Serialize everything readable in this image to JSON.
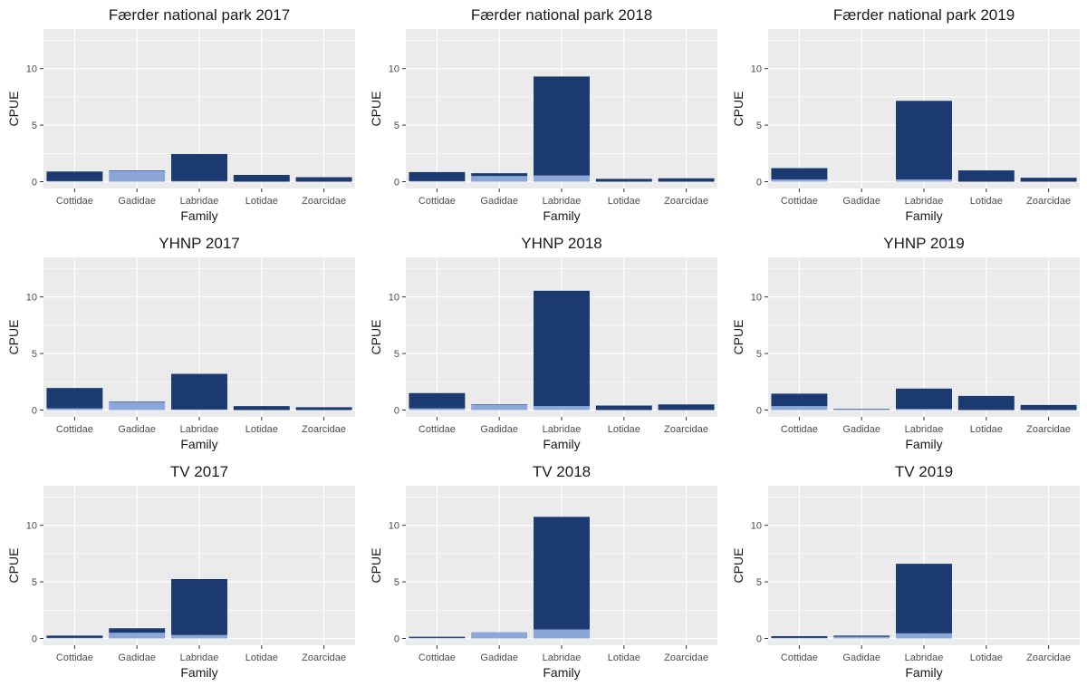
{
  "colors": {
    "panel_bg": "#ebebeb",
    "grid": "#ffffff",
    "dark": "#1b3a70",
    "light": "#8ba6d9"
  },
  "chart_data": [
    {
      "type": "bar",
      "title": "Færder national park 2017",
      "xlabel": "Family",
      "ylabel": "CPUE",
      "ylim": [
        -0.6,
        13.5
      ],
      "yticks": [
        "0",
        "5",
        "10"
      ],
      "categories": [
        "Cottidae",
        "Gadidae",
        "Labridae",
        "Lotidae",
        "Zoarcidae"
      ],
      "series": [
        {
          "color": "#8ba6d9",
          "values": [
            0.05,
            0.95,
            0.05,
            0.0,
            0.0
          ]
        },
        {
          "color": "#1b3a70",
          "values": [
            0.85,
            0.05,
            2.4,
            0.6,
            0.4
          ]
        }
      ]
    },
    {
      "type": "bar",
      "title": "Færder national park 2018",
      "xlabel": "Family",
      "ylabel": "CPUE",
      "ylim": [
        -0.6,
        13.5
      ],
      "yticks": [
        "0",
        "5",
        "10"
      ],
      "categories": [
        "Cottidae",
        "Gadidae",
        "Labridae",
        "Lotidae",
        "Zoarcidae"
      ],
      "series": [
        {
          "color": "#8ba6d9",
          "values": [
            0.05,
            0.5,
            0.55,
            0.0,
            0.0
          ]
        },
        {
          "color": "#1b3a70",
          "values": [
            0.8,
            0.25,
            8.75,
            0.25,
            0.3
          ]
        }
      ]
    },
    {
      "type": "bar",
      "title": "Færder national park 2019",
      "xlabel": "Family",
      "ylabel": "CPUE",
      "ylim": [
        -0.6,
        13.5
      ],
      "yticks": [
        "0",
        "5",
        "10"
      ],
      "categories": [
        "Cottidae",
        "Gadidae",
        "Labridae",
        "Lotidae",
        "Zoarcidae"
      ],
      "series": [
        {
          "color": "#8ba6d9",
          "values": [
            0.2,
            0.0,
            0.2,
            0.0,
            0.0
          ]
        },
        {
          "color": "#1b3a70",
          "values": [
            1.0,
            0.0,
            6.95,
            1.0,
            0.35
          ]
        }
      ]
    },
    {
      "type": "bar",
      "title": "YHNP 2017",
      "xlabel": "Family",
      "ylabel": "CPUE",
      "ylim": [
        -0.6,
        13.5
      ],
      "yticks": [
        "0",
        "5",
        "10"
      ],
      "categories": [
        "Cottidae",
        "Gadidae",
        "Labridae",
        "Lotidae",
        "Zoarcidae"
      ],
      "series": [
        {
          "color": "#8ba6d9",
          "values": [
            0.15,
            0.7,
            0.05,
            0.0,
            0.0
          ]
        },
        {
          "color": "#1b3a70",
          "values": [
            1.8,
            0.05,
            3.15,
            0.35,
            0.25
          ]
        }
      ]
    },
    {
      "type": "bar",
      "title": "YHNP 2018",
      "xlabel": "Family",
      "ylabel": "CPUE",
      "ylim": [
        -0.6,
        13.5
      ],
      "yticks": [
        "0",
        "5",
        "10"
      ],
      "categories": [
        "Cottidae",
        "Gadidae",
        "Labridae",
        "Lotidae",
        "Zoarcidae"
      ],
      "series": [
        {
          "color": "#8ba6d9",
          "values": [
            0.15,
            0.45,
            0.35,
            0.0,
            0.0
          ]
        },
        {
          "color": "#1b3a70",
          "values": [
            1.35,
            0.05,
            10.2,
            0.4,
            0.5
          ]
        }
      ]
    },
    {
      "type": "bar",
      "title": "YHNP 2019",
      "xlabel": "Family",
      "ylabel": "CPUE",
      "ylim": [
        -0.6,
        13.5
      ],
      "yticks": [
        "0",
        "5",
        "10"
      ],
      "categories": [
        "Cottidae",
        "Gadidae",
        "Labridae",
        "Lotidae",
        "Zoarcidae"
      ],
      "series": [
        {
          "color": "#8ba6d9",
          "values": [
            0.35,
            0.05,
            0.1,
            0.0,
            0.0
          ]
        },
        {
          "color": "#1b3a70",
          "values": [
            1.1,
            0.05,
            1.8,
            1.25,
            0.45
          ]
        }
      ]
    },
    {
      "type": "bar",
      "title": "TV 2017",
      "xlabel": "Family",
      "ylabel": "CPUE",
      "ylim": [
        -0.6,
        13.5
      ],
      "yticks": [
        "0",
        "5",
        "10"
      ],
      "categories": [
        "Cottidae",
        "Gadidae",
        "Labridae",
        "Lotidae",
        "Zoarcidae"
      ],
      "series": [
        {
          "color": "#8ba6d9",
          "values": [
            0.05,
            0.5,
            0.3,
            0.0,
            0.0
          ]
        },
        {
          "color": "#1b3a70",
          "values": [
            0.2,
            0.4,
            4.95,
            0.0,
            0.0
          ]
        }
      ]
    },
    {
      "type": "bar",
      "title": "TV 2018",
      "xlabel": "Family",
      "ylabel": "CPUE",
      "ylim": [
        -0.6,
        13.5
      ],
      "yticks": [
        "0",
        "5",
        "10"
      ],
      "categories": [
        "Cottidae",
        "Gadidae",
        "Labridae",
        "Lotidae",
        "Zoarcidae"
      ],
      "series": [
        {
          "color": "#8ba6d9",
          "values": [
            0.05,
            0.55,
            0.8,
            0.0,
            0.0
          ]
        },
        {
          "color": "#1b3a70",
          "values": [
            0.1,
            0.0,
            9.95,
            0.0,
            0.0
          ]
        }
      ]
    },
    {
      "type": "bar",
      "title": "TV 2019",
      "xlabel": "Family",
      "ylabel": "CPUE",
      "ylim": [
        -0.6,
        13.5
      ],
      "yticks": [
        "0",
        "5",
        "10"
      ],
      "categories": [
        "Cottidae",
        "Gadidae",
        "Labridae",
        "Lotidae",
        "Zoarcidae"
      ],
      "series": [
        {
          "color": "#8ba6d9",
          "values": [
            0.05,
            0.15,
            0.45,
            0.0,
            0.0
          ]
        },
        {
          "color": "#1b3a70",
          "values": [
            0.15,
            0.1,
            6.15,
            0.0,
            0.0
          ]
        }
      ]
    }
  ]
}
